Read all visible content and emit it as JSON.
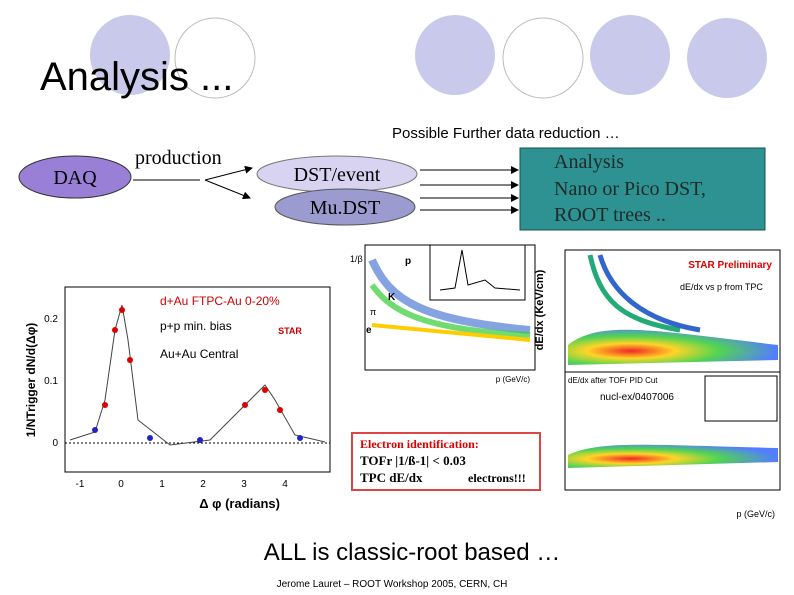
{
  "title": "Analysis ...",
  "reduction_note": "Possible Further data reduction …",
  "nodes": {
    "daq": "DAQ",
    "production": "production",
    "dst_event": "DST/event",
    "mudst": "Mu.DST"
  },
  "analysis_box": {
    "lines": [
      "Analysis",
      "Nano or Pico DST,",
      "ROOT trees .."
    ]
  },
  "left_plot": {
    "legend": [
      "d+Au FTPC-Au 0-20%",
      "p+p min. bias",
      "Au+Au Central"
    ],
    "badge": "STAR",
    "y_label": "1/NTrigger dN/d(Δφ)",
    "x_label": "Δ φ (radians)",
    "y_ticks": [
      "0.2",
      "0.1",
      "0"
    ],
    "x_ticks": [
      "-1",
      "0",
      "1",
      "2",
      "3",
      "4"
    ]
  },
  "middle_plot": {
    "y_label": "1/β",
    "x_label": "p (GeV/c)",
    "labels": [
      "p",
      "K",
      "π",
      "e"
    ]
  },
  "electron_box": {
    "heading": "Electron identification:",
    "lines": [
      "TOFr |1/ß-1| < 0.03",
      "TPC dE/dx"
    ],
    "result": "electrons!!!"
  },
  "right_plot": {
    "badge": "STAR Preliminary",
    "top_caption": "dE/dx vs p from TPC",
    "bottom_caption": "dE/dx after TOFr PID Cut",
    "reference": "nucl-ex/0407006",
    "y_label": "dE/dx (KeV/cm)",
    "x_label": "p (GeV/c)"
  },
  "conclusion": "ALL is classic-root based …",
  "footer": "Jerome Lauret – ROOT Workshop 2005, CERN, CH"
}
